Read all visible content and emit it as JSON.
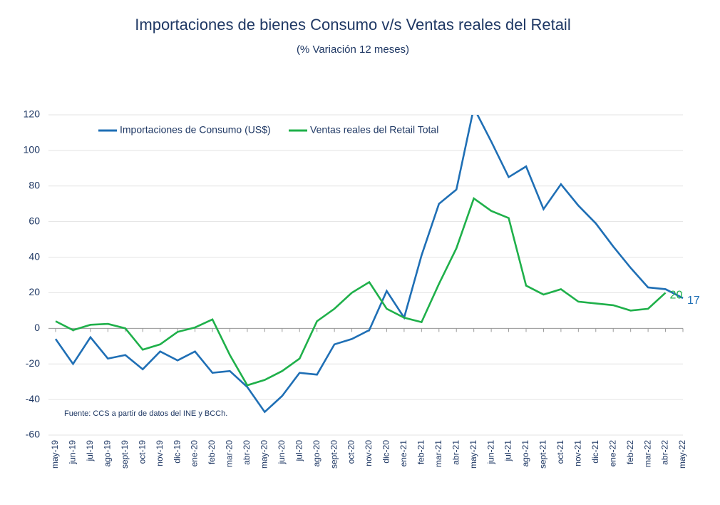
{
  "chart_data": {
    "type": "line",
    "title": "Importaciones de bienes Consumo v/s Ventas reales del Retail",
    "subtitle": "(% Variación 12 meses)",
    "source": "Fuente: CCS a partir de datos del INE y BCCh.",
    "categories": [
      "may-19",
      "jun-19",
      "jul-19",
      "ago-19",
      "sept-19",
      "oct-19",
      "nov-19",
      "dic-19",
      "ene-20",
      "feb-20",
      "mar-20",
      "abr-20",
      "may-20",
      "jun-20",
      "jul-20",
      "ago-20",
      "sept-20",
      "oct-20",
      "nov-20",
      "dic-20",
      "ene-21",
      "feb-21",
      "mar-21",
      "abr-21",
      "may-21",
      "jun-21",
      "jul-21",
      "ago-21",
      "sept-21",
      "oct-21",
      "nov-21",
      "dic-21",
      "ene-22",
      "feb-22",
      "mar-22",
      "abr-22",
      "may-22"
    ],
    "series": [
      {
        "name": "Importaciones de Consumo (US$)",
        "color": "#1f6fb5",
        "values": [
          -6,
          -20,
          -5,
          -17,
          -15,
          -23,
          -13,
          -18,
          -13,
          -25,
          -24,
          -33,
          -47,
          -38,
          -25,
          -26,
          -9,
          -6,
          -1,
          21,
          6,
          41,
          70,
          78,
          124,
          105,
          85,
          91,
          67,
          81,
          69,
          59,
          46,
          34,
          23,
          22,
          17
        ]
      },
      {
        "name": "Ventas reales del Retail Total",
        "color": "#1fb04a",
        "values": [
          4,
          -1,
          2,
          2.5,
          0,
          -12,
          -9,
          -2,
          0.5,
          5,
          -15,
          -32,
          -29,
          -24,
          -17,
          4,
          11,
          20,
          26,
          11,
          6,
          3.5,
          25,
          45,
          73,
          66,
          62,
          24,
          19,
          22,
          15,
          14,
          13,
          10,
          11,
          20,
          null
        ]
      }
    ],
    "ylim": [
      -60,
      120
    ],
    "yticks": [
      -60,
      -40,
      -20,
      0,
      20,
      40,
      60,
      80,
      100,
      120
    ],
    "grid": true,
    "legend": "top-left"
  }
}
